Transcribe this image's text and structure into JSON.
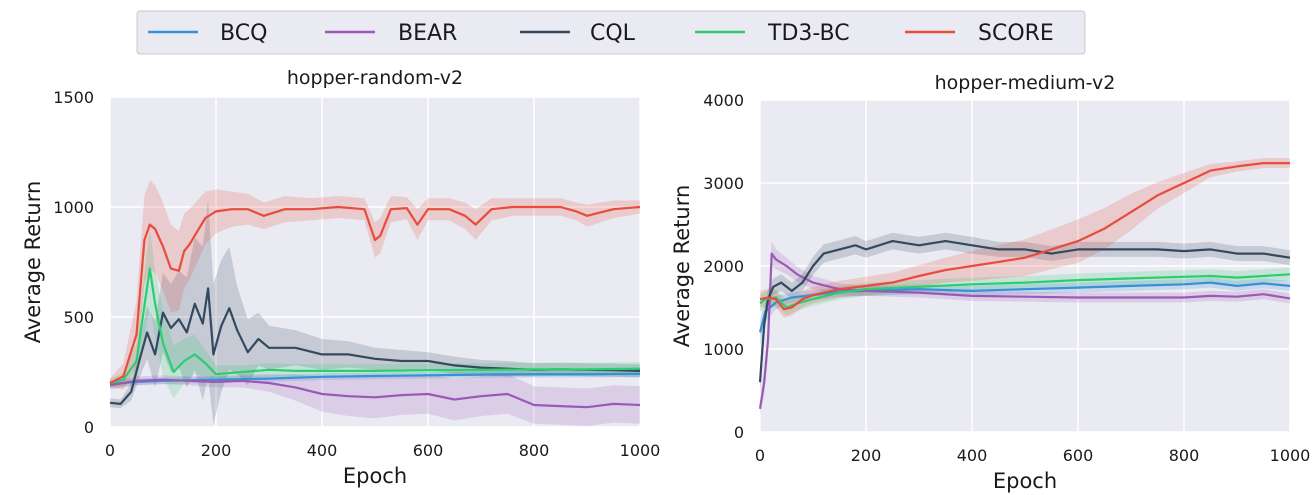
{
  "legend": {
    "items": [
      {
        "name": "BCQ",
        "color": "#3a8fd8"
      },
      {
        "name": "BEAR",
        "color": "#9b59b6"
      },
      {
        "name": "CQL",
        "color": "#34495e"
      },
      {
        "name": "TD3-BC",
        "color": "#2ecc71"
      },
      {
        "name": "SCORE",
        "color": "#e74c3c"
      }
    ]
  },
  "chart_data": [
    {
      "type": "line",
      "title": "hopper-random-v2",
      "xlabel": "Epoch",
      "ylabel": "Average Return",
      "xlim": [
        0,
        1000
      ],
      "ylim": [
        0,
        1500
      ],
      "xticks": [
        "0",
        "200",
        "400",
        "600",
        "800",
        "1000"
      ],
      "yticks": [
        "0",
        "500",
        "1000",
        "1500"
      ],
      "series": [
        {
          "name": "BCQ",
          "color": "#3a8fd8",
          "x": [
            0,
            50,
            100,
            200,
            300,
            400,
            500,
            600,
            700,
            800,
            900,
            1000
          ],
          "y": [
            195,
            205,
            210,
            215,
            220,
            228,
            232,
            235,
            238,
            240,
            240,
            242
          ],
          "band": [
            15,
            15,
            15,
            15,
            15,
            15,
            15,
            15,
            15,
            15,
            15,
            15
          ]
        },
        {
          "name": "BEAR",
          "color": "#9b59b6",
          "x": [
            0,
            50,
            100,
            150,
            200,
            250,
            300,
            350,
            400,
            450,
            500,
            550,
            600,
            650,
            700,
            750,
            800,
            850,
            900,
            950,
            1000
          ],
          "y": [
            190,
            210,
            215,
            210,
            205,
            210,
            200,
            180,
            150,
            140,
            135,
            145,
            150,
            125,
            140,
            150,
            100,
            95,
            90,
            105,
            100
          ],
          "band": [
            20,
            20,
            20,
            20,
            25,
            30,
            40,
            60,
            80,
            90,
            95,
            90,
            90,
            95,
            90,
            90,
            85,
            85,
            85,
            85,
            85
          ]
        },
        {
          "name": "CQL",
          "color": "#34495e",
          "x": [
            0,
            20,
            40,
            55,
            70,
            85,
            100,
            115,
            130,
            145,
            160,
            175,
            185,
            195,
            210,
            225,
            240,
            260,
            280,
            300,
            350,
            400,
            450,
            500,
            550,
            600,
            650,
            700,
            750,
            800,
            850,
            900,
            950,
            1000
          ],
          "y": [
            110,
            105,
            160,
            300,
            430,
            330,
            520,
            450,
            490,
            430,
            560,
            470,
            630,
            330,
            460,
            540,
            440,
            340,
            400,
            360,
            360,
            330,
            330,
            310,
            300,
            300,
            280,
            270,
            265,
            260,
            262,
            260,
            258,
            255
          ],
          "band": [
            20,
            20,
            40,
            80,
            120,
            150,
            180,
            200,
            220,
            250,
            300,
            350,
            400,
            320,
            300,
            280,
            200,
            150,
            120,
            100,
            80,
            70,
            60,
            50,
            50,
            40,
            40,
            35,
            35,
            30,
            30,
            30,
            30,
            30
          ]
        },
        {
          "name": "TD3-BC",
          "color": "#2ecc71",
          "x": [
            0,
            25,
            50,
            65,
            75,
            85,
            100,
            120,
            140,
            160,
            180,
            200,
            250,
            300,
            350,
            400,
            500,
            600,
            700,
            800,
            900,
            1000
          ],
          "y": [
            200,
            215,
            300,
            550,
            720,
            560,
            380,
            250,
            300,
            330,
            290,
            240,
            250,
            260,
            255,
            255,
            255,
            258,
            260,
            262,
            262,
            265
          ],
          "band": [
            20,
            30,
            80,
            150,
            180,
            150,
            150,
            120,
            100,
            90,
            60,
            40,
            30,
            30,
            30,
            30,
            30,
            30,
            30,
            30,
            30,
            30
          ]
        },
        {
          "name": "SCORE",
          "color": "#e74c3c",
          "x": [
            0,
            25,
            50,
            65,
            75,
            85,
            100,
            115,
            130,
            140,
            150,
            165,
            180,
            200,
            230,
            260,
            290,
            330,
            380,
            430,
            480,
            500,
            510,
            530,
            560,
            580,
            600,
            640,
            670,
            690,
            720,
            760,
            800,
            850,
            880,
            900,
            950,
            1000
          ],
          "y": [
            200,
            230,
            420,
            850,
            920,
            900,
            820,
            720,
            710,
            800,
            830,
            890,
            950,
            980,
            990,
            990,
            960,
            990,
            990,
            1000,
            990,
            850,
            870,
            990,
            995,
            920,
            990,
            990,
            960,
            920,
            990,
            1000,
            1000,
            1000,
            980,
            960,
            990,
            1000
          ],
          "band": [
            20,
            60,
            150,
            200,
            200,
            200,
            200,
            200,
            180,
            170,
            160,
            140,
            120,
            100,
            80,
            70,
            60,
            60,
            50,
            50,
            50,
            80,
            80,
            60,
            50,
            70,
            50,
            50,
            60,
            70,
            50,
            40,
            40,
            40,
            40,
            50,
            40,
            30
          ]
        }
      ]
    },
    {
      "type": "line",
      "title": "hopper-medium-v2",
      "xlabel": "Epoch",
      "ylabel": "Average Return",
      "xlim": [
        0,
        1000
      ],
      "ylim": [
        0,
        4000
      ],
      "xticks": [
        "0",
        "200",
        "400",
        "600",
        "800",
        "1000"
      ],
      "yticks": [
        "0",
        "1000",
        "2000",
        "3000",
        "4000"
      ],
      "series": [
        {
          "name": "BCQ",
          "color": "#3a8fd8",
          "x": [
            0,
            10,
            30,
            60,
            100,
            150,
            200,
            300,
            400,
            500,
            600,
            700,
            800,
            850,
            900,
            950,
            1000
          ],
          "y": [
            1200,
            1450,
            1560,
            1620,
            1650,
            1690,
            1700,
            1720,
            1700,
            1720,
            1740,
            1760,
            1780,
            1800,
            1760,
            1790,
            1760
          ],
          "band": [
            150,
            120,
            80,
            60,
            60,
            60,
            60,
            60,
            60,
            60,
            60,
            60,
            60,
            60,
            60,
            60,
            60
          ]
        },
        {
          "name": "BEAR",
          "color": "#9b59b6",
          "x": [
            0,
            8,
            15,
            22,
            30,
            50,
            70,
            100,
            150,
            200,
            300,
            400,
            500,
            600,
            700,
            800,
            850,
            900,
            950,
            1000
          ],
          "y": [
            280,
            600,
            1100,
            2150,
            2080,
            2000,
            1900,
            1800,
            1720,
            1700,
            1680,
            1640,
            1630,
            1620,
            1620,
            1620,
            1640,
            1630,
            1660,
            1610
          ],
          "band": [
            80,
            150,
            200,
            150,
            120,
            100,
            90,
            80,
            70,
            60,
            60,
            60,
            60,
            60,
            60,
            60,
            60,
            60,
            60,
            60
          ]
        },
        {
          "name": "CQL",
          "color": "#34495e",
          "x": [
            0,
            8,
            15,
            25,
            40,
            60,
            80,
            100,
            120,
            150,
            180,
            200,
            250,
            300,
            350,
            400,
            450,
            500,
            550,
            600,
            650,
            700,
            750,
            800,
            850,
            900,
            950,
            1000
          ],
          "y": [
            600,
            1300,
            1600,
            1750,
            1800,
            1700,
            1800,
            2000,
            2150,
            2200,
            2250,
            2200,
            2300,
            2250,
            2300,
            2250,
            2200,
            2200,
            2150,
            2200,
            2200,
            2200,
            2200,
            2180,
            2200,
            2150,
            2150,
            2100
          ],
          "band": [
            150,
            150,
            120,
            100,
            100,
            100,
            100,
            110,
            110,
            110,
            110,
            100,
            100,
            100,
            100,
            100,
            90,
            90,
            90,
            90,
            90,
            90,
            90,
            90,
            90,
            90,
            90,
            90
          ]
        },
        {
          "name": "TD3-BC",
          "color": "#2ecc71",
          "x": [
            0,
            10,
            30,
            50,
            70,
            100,
            150,
            200,
            300,
            400,
            500,
            600,
            700,
            800,
            850,
            900,
            950,
            1000
          ],
          "y": [
            1550,
            1600,
            1620,
            1500,
            1550,
            1600,
            1680,
            1720,
            1750,
            1780,
            1800,
            1830,
            1850,
            1870,
            1880,
            1860,
            1880,
            1900
          ],
          "band": [
            100,
            100,
            100,
            100,
            90,
            80,
            80,
            80,
            80,
            80,
            80,
            80,
            80,
            80,
            80,
            80,
            80,
            80
          ]
        },
        {
          "name": "SCORE",
          "color": "#e74c3c",
          "x": [
            0,
            15,
            30,
            45,
            60,
            80,
            100,
            150,
            200,
            250,
            300,
            350,
            400,
            450,
            500,
            550,
            600,
            650,
            700,
            750,
            800,
            850,
            900,
            950,
            1000
          ],
          "y": [
            1600,
            1620,
            1600,
            1480,
            1500,
            1600,
            1650,
            1720,
            1760,
            1800,
            1880,
            1950,
            2000,
            2050,
            2100,
            2200,
            2300,
            2450,
            2650,
            2850,
            3000,
            3150,
            3200,
            3240,
            3240
          ],
          "band": [
            100,
            100,
            100,
            100,
            100,
            100,
            100,
            100,
            110,
            120,
            130,
            150,
            180,
            200,
            220,
            240,
            260,
            250,
            220,
            160,
            120,
            80,
            60,
            60,
            60
          ]
        }
      ]
    }
  ]
}
